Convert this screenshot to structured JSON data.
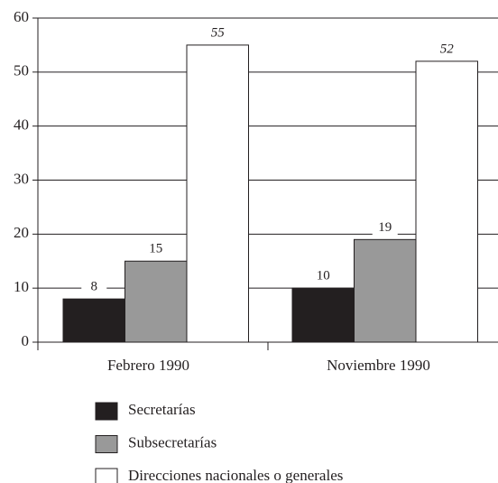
{
  "chart_data": {
    "type": "bar",
    "categories": [
      "Febrero 1990",
      "Noviembre 1990"
    ],
    "series": [
      {
        "name": "Secretarías",
        "color": "#231f20",
        "values": [
          8,
          10
        ]
      },
      {
        "name": "Subsecretarías",
        "color": "#999999",
        "values": [
          15,
          19
        ]
      },
      {
        "name": "Direcciones nacionales o generales",
        "color": "#ffffff",
        "values": [
          55,
          52
        ]
      }
    ],
    "ylim": [
      0,
      60
    ],
    "yticks": [
      0,
      10,
      20,
      30,
      40,
      50,
      60
    ],
    "grid": true
  }
}
